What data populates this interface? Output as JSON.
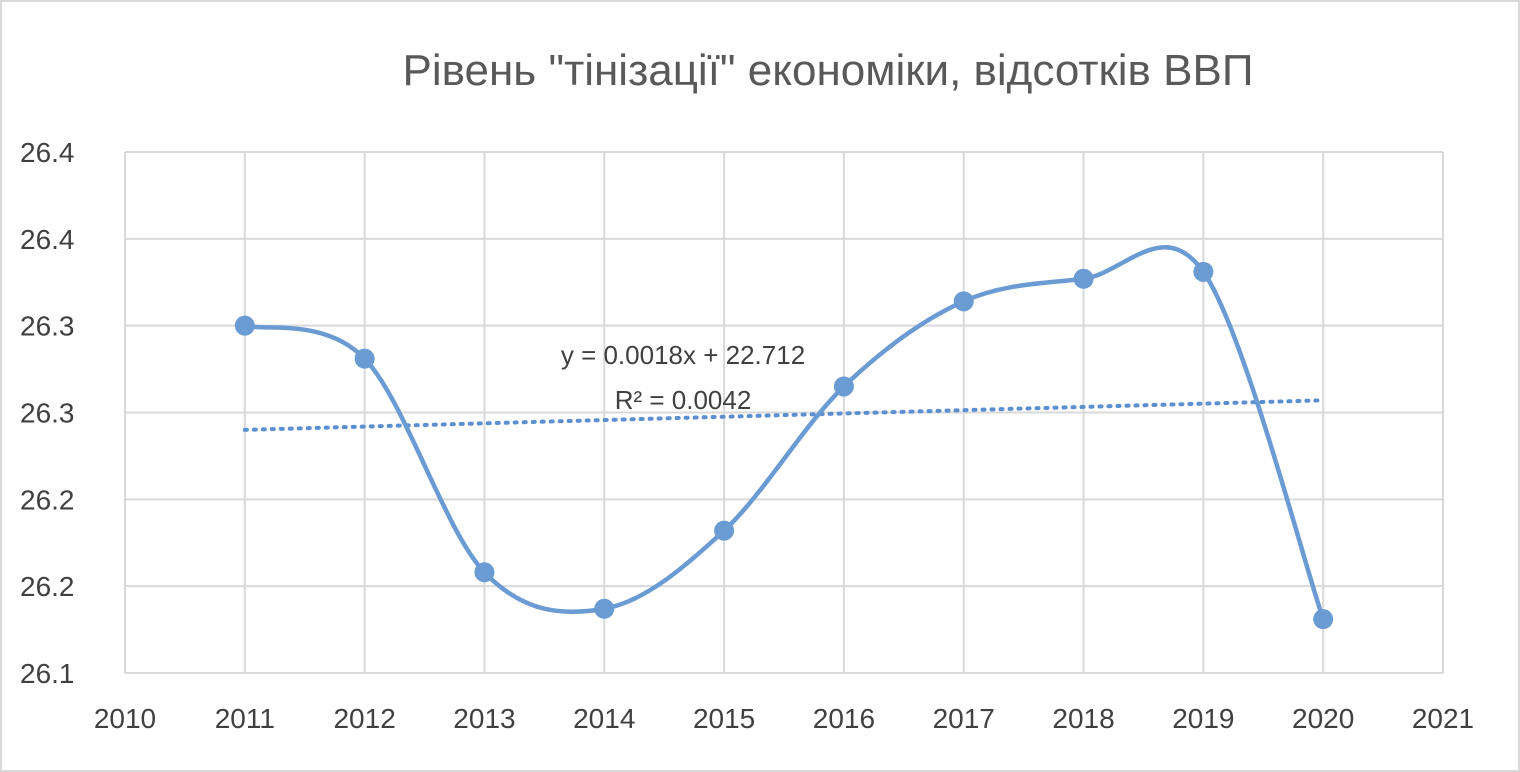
{
  "chart_data": {
    "type": "scatter",
    "title": "Рівень \"тінізації\" економіки, відсотків ВВП",
    "xlabel": "",
    "ylabel": "",
    "xlim": [
      2010,
      2021
    ],
    "ylim": [
      26.1,
      26.4
    ],
    "x_ticks": [
      2010,
      2011,
      2012,
      2013,
      2014,
      2015,
      2016,
      2017,
      2018,
      2019,
      2020,
      2021
    ],
    "x_tick_labels": [
      "2010",
      "2011",
      "2012",
      "2013",
      "2014",
      "2015",
      "2016",
      "2017",
      "2018",
      "2019",
      "2020",
      "2021"
    ],
    "y_ticks": [
      26.1,
      26.15,
      26.2,
      26.25,
      26.3,
      26.35,
      26.4
    ],
    "y_tick_labels": [
      "26.1",
      "26.2",
      "26.2",
      "26.3",
      "26.3",
      "26.4",
      "26.4"
    ],
    "grid": true,
    "smooth_line": true,
    "series": [
      {
        "color": "#6b9bd3",
        "x": [
          2011,
          2012,
          2013,
          2014,
          2015,
          2016,
          2017,
          2018,
          2019,
          2020
        ],
        "y": [
          26.3,
          26.281,
          26.158,
          26.137,
          26.182,
          26.265,
          26.314,
          26.327,
          26.331,
          26.131
        ]
      }
    ],
    "trendline": {
      "type": "linear",
      "color": "#5b8fcf",
      "x_range": [
        2011,
        2020
      ],
      "y_range": [
        26.24,
        26.257
      ],
      "equation": "y = 0.0018x + 22.712",
      "r_squared": "R² = 0.0042"
    }
  }
}
